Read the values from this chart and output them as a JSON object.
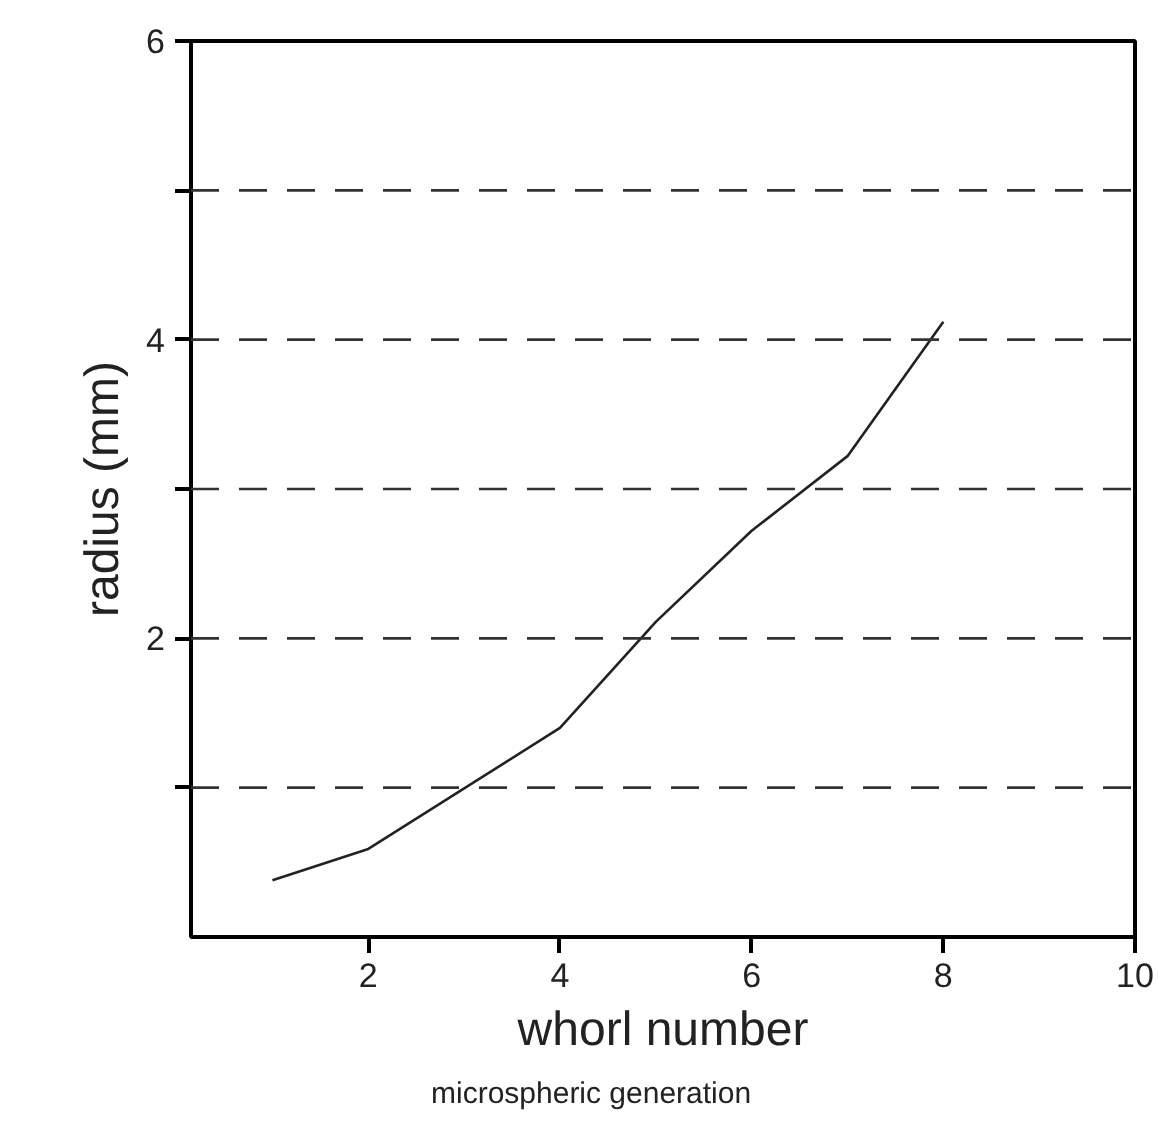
{
  "chart_data": {
    "type": "line",
    "xlabel": "whorl number",
    "ylabel": "radius (mm)",
    "annotations": [
      "microspheric generation"
    ],
    "x": [
      1,
      2,
      4,
      5,
      6,
      7,
      8
    ],
    "series": [
      {
        "color": "#222222",
        "values": [
          0.38,
          0.59,
          1.4,
          2.11,
          2.72,
          3.22,
          4.12
        ]
      }
    ],
    "xlim": [
      0.15,
      10
    ],
    "ylim": [
      0,
      6
    ],
    "xticks": [
      2,
      4,
      6,
      8,
      10
    ],
    "yticks": [
      {
        "value": 1,
        "label": null
      },
      2,
      {
        "value": 3,
        "label": null
      },
      4,
      {
        "value": 5,
        "label": null
      },
      6
    ],
    "ref_lines": [
      {
        "axis": "y",
        "value": 1,
        "line_style": "dashed"
      },
      {
        "axis": "y",
        "value": 2,
        "line_style": "dashed"
      },
      {
        "axis": "y",
        "value": 3,
        "line_style": "dashed"
      },
      {
        "axis": "y",
        "value": 4,
        "line_style": "dashed"
      },
      {
        "axis": "y",
        "value": 5,
        "line_style": "dashed"
      }
    ],
    "marker": "none",
    "line_style": "solid"
  }
}
